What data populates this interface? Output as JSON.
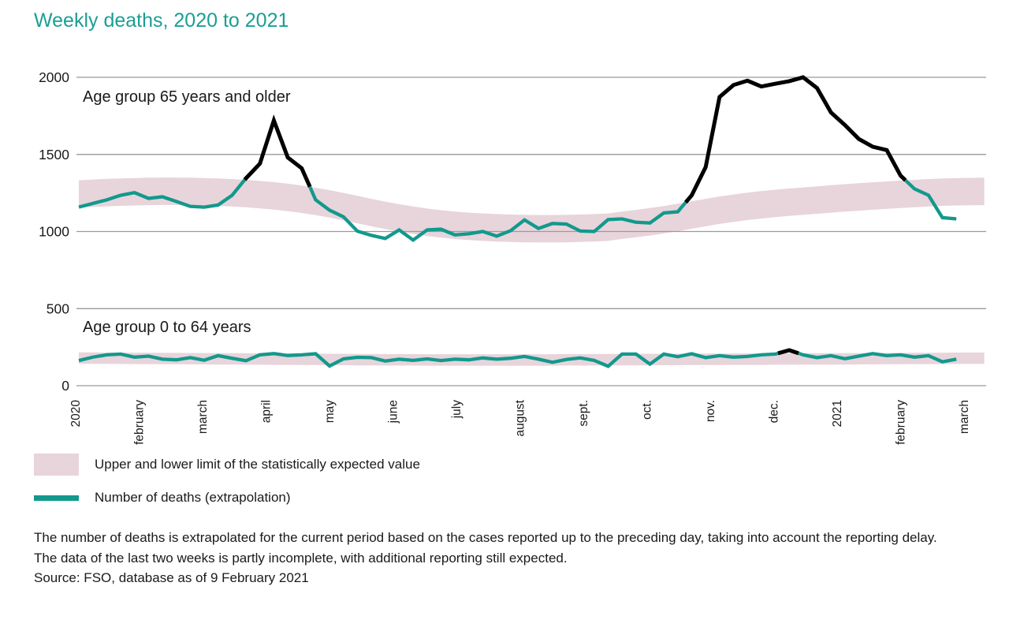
{
  "title": "Weekly deaths, 2020 to 2021",
  "legend": {
    "items": [
      {
        "label": "Upper and lower limit of the statistically expected value",
        "swatch": "band"
      },
      {
        "label": "Number of deaths (extrapolation)",
        "swatch": "line"
      }
    ]
  },
  "footnotes": [
    "The number of deaths is extrapolated for the current period based on the cases reported up to the preceding day, taking into account the reporting delay.",
    "The data of the last two weeks is partly incomplete, with additional reporting still expected.",
    "Source: FSO, database as of 9 February 2021"
  ],
  "chart_data": {
    "type": "line",
    "title": "Weekly deaths, 2020 to 2021",
    "x_labels": [
      "2020",
      "february",
      "march",
      "april",
      "may",
      "june",
      "july",
      "august",
      "sept.",
      "oct.",
      "nov.",
      "dec.",
      "2021",
      "february",
      "march"
    ],
    "y_ticks": [
      0,
      500,
      1000,
      1500,
      2000
    ],
    "ylim": [
      0,
      2000
    ],
    "grid": "horizontal",
    "note": "Line is drawn in black where weekly deaths exceed the upper limit of the statistically expected value",
    "colors": {
      "line": "#12998c",
      "excess": "#000000",
      "band": "#e8d4db",
      "grid": "#9a9a9a",
      "title": "#1b9e94",
      "text": "#1a1a1a"
    },
    "panels": [
      {
        "label": "Age group 65 years and older",
        "values": [
          1158,
          1182,
          1205,
          1235,
          1252,
          1215,
          1225,
          1195,
          1163,
          1158,
          1172,
          1235,
          1345,
          1440,
          1720,
          1480,
          1410,
          1205,
          1138,
          1095,
          1002,
          975,
          955,
          1010,
          944,
          1010,
          1015,
          978,
          985,
          1000,
          970,
          1005,
          1075,
          1020,
          1052,
          1048,
          1003,
          1000,
          1077,
          1082,
          1060,
          1055,
          1120,
          1128,
          1235,
          1418,
          1872,
          1950,
          1978,
          1940,
          1958,
          1975,
          2000,
          1930,
          1772,
          1690,
          1600,
          1550,
          1528,
          1362,
          1276,
          1235,
          1090,
          1082
        ],
        "band_upper": [
          1332,
          1337,
          1341,
          1344,
          1347,
          1349,
          1350,
          1350,
          1349,
          1347,
          1344,
          1340,
          1335,
          1328,
          1320,
          1310,
          1298,
          1284,
          1268,
          1250,
          1231,
          1212,
          1194,
          1177,
          1162,
          1149,
          1138,
          1129,
          1122,
          1117,
          1113,
          1110,
          1108,
          1107,
          1107,
          1108,
          1110,
          1113,
          1117,
          1130,
          1140,
          1152,
          1165,
          1180,
          1196,
          1212,
          1227,
          1240,
          1252,
          1262,
          1271,
          1279,
          1286,
          1293,
          1300,
          1307,
          1313,
          1319,
          1325,
          1330,
          1335,
          1340,
          1344,
          1347,
          1348,
          1349
        ],
        "band_lower": [
          1154,
          1159,
          1163,
          1166,
          1169,
          1171,
          1172,
          1172,
          1171,
          1169,
          1166,
          1162,
          1157,
          1150,
          1142,
          1132,
          1120,
          1106,
          1090,
          1072,
          1053,
          1034,
          1016,
          999,
          984,
          971,
          960,
          951,
          944,
          939,
          935,
          932,
          930,
          929,
          929,
          930,
          932,
          935,
          939,
          952,
          962,
          974,
          987,
          1002,
          1018,
          1034,
          1049,
          1062,
          1074,
          1084,
          1093,
          1101,
          1108,
          1115,
          1122,
          1129,
          1135,
          1141,
          1147,
          1152,
          1157,
          1162,
          1166,
          1169,
          1170,
          1171
        ]
      },
      {
        "label": "Age group 0 to 64 years",
        "values": [
          163,
          185,
          200,
          205,
          185,
          192,
          172,
          168,
          182,
          165,
          195,
          178,
          162,
          200,
          208,
          196,
          200,
          207,
          128,
          174,
          184,
          182,
          160,
          172,
          164,
          174,
          163,
          172,
          168,
          180,
          172,
          178,
          190,
          172,
          152,
          170,
          180,
          164,
          126,
          205,
          205,
          140,
          205,
          188,
          207,
          182,
          195,
          185,
          190,
          200,
          205,
          230,
          200,
          182,
          195,
          175,
          192,
          208,
          195,
          200,
          185,
          195,
          155,
          172
        ],
        "band_upper": [
          216,
          216,
          215,
          215,
          214,
          214,
          213,
          213,
          212,
          212,
          211,
          211,
          210,
          210,
          209,
          209,
          208,
          208,
          207,
          207,
          206,
          206,
          205,
          205,
          205,
          204,
          204,
          204,
          204,
          204,
          204,
          204,
          204,
          204,
          204,
          205,
          205,
          205,
          206,
          206,
          206,
          207,
          207,
          207,
          208,
          208,
          208,
          209,
          209,
          209,
          210,
          210,
          210,
          211,
          211,
          211,
          212,
          212,
          213,
          213,
          214,
          214,
          214,
          215,
          215,
          215
        ],
        "band_lower": [
          142,
          142,
          141,
          141,
          140,
          140,
          139,
          139,
          138,
          138,
          137,
          137,
          136,
          136,
          135,
          135,
          134,
          134,
          133,
          133,
          132,
          132,
          131,
          131,
          131,
          130,
          130,
          130,
          130,
          130,
          130,
          130,
          130,
          130,
          130,
          131,
          131,
          131,
          132,
          132,
          132,
          133,
          133,
          133,
          134,
          134,
          134,
          135,
          135,
          135,
          136,
          136,
          136,
          137,
          137,
          137,
          138,
          138,
          139,
          139,
          140,
          140,
          140,
          141,
          141,
          141
        ]
      }
    ]
  }
}
